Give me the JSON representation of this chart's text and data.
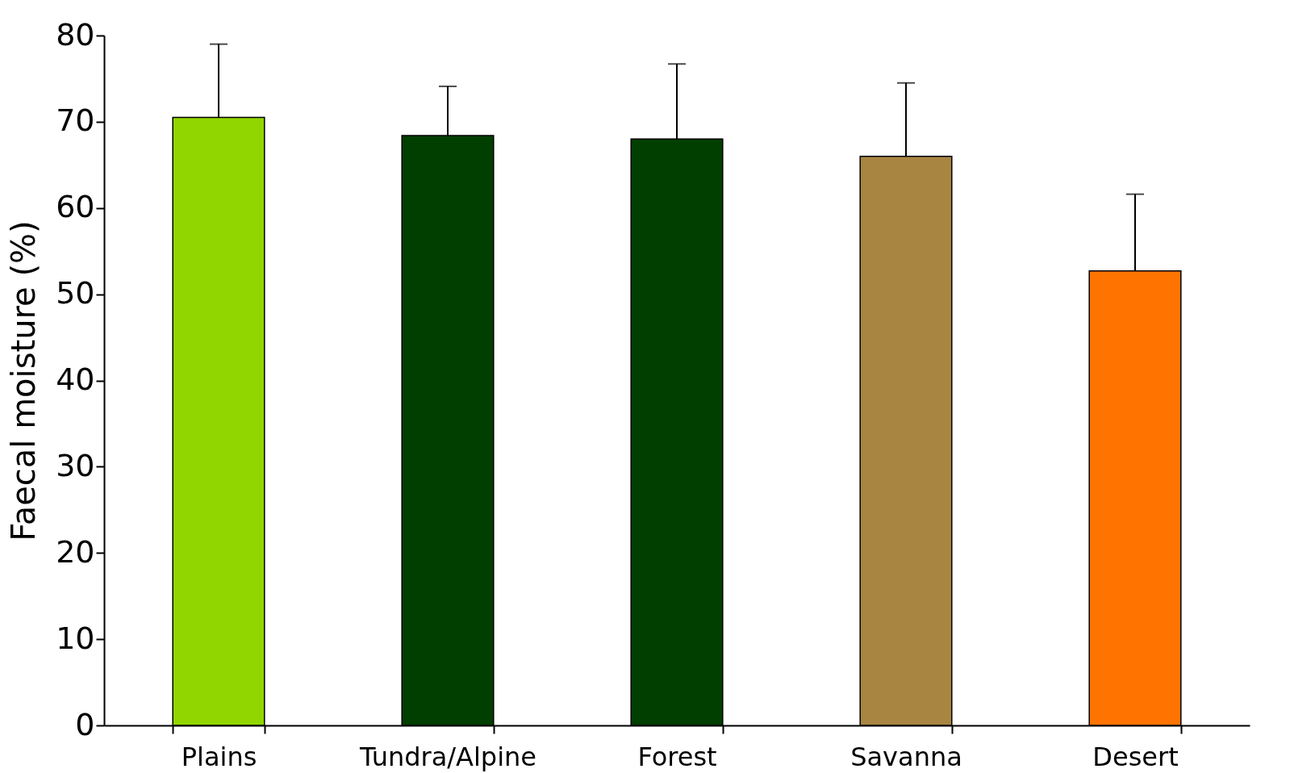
{
  "chart_data": {
    "type": "bar",
    "ylabel": "Faecal moisture (%)",
    "categories": [
      "Plains",
      "Tundra/Alpine",
      "Forest",
      "Savanna",
      "Desert"
    ],
    "values": [
      70.5,
      68.4,
      68.0,
      66.0,
      52.7
    ],
    "colors": [
      "#92d600",
      "#003f00",
      "#003f00",
      "#a98542",
      "#ff7400"
    ],
    "errors": [
      [
        70.5,
        79.0
      ],
      [
        68.4,
        74.1
      ],
      [
        68.0,
        76.7
      ],
      [
        66.0,
        74.5
      ],
      [
        52.7,
        61.6
      ]
    ],
    "ylim": [
      0,
      80
    ],
    "yticks": [
      0,
      10,
      20,
      30,
      40,
      50,
      60,
      70,
      80
    ],
    "grid": false,
    "legend": false
  }
}
